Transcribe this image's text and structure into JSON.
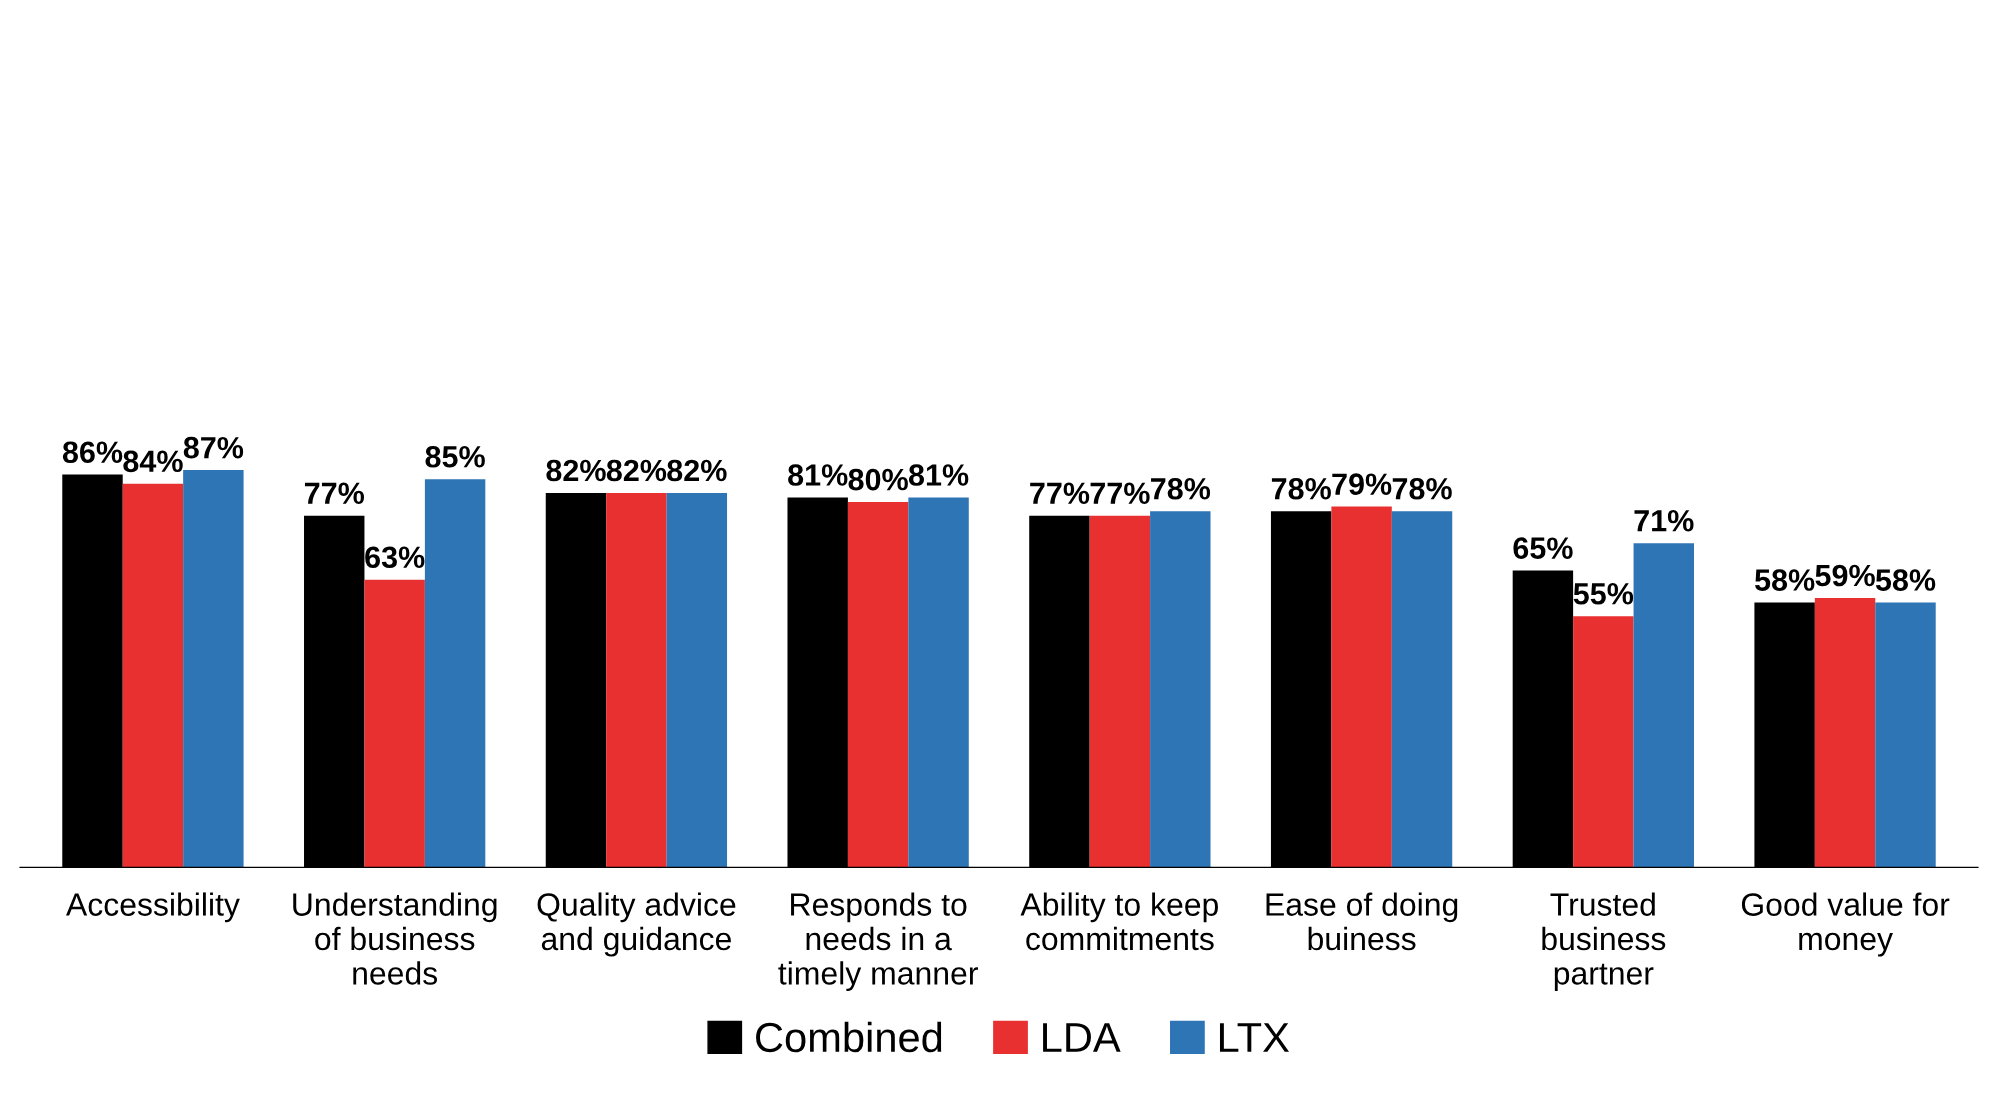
{
  "chart_data": {
    "type": "bar",
    "categories": [
      "Accessibility",
      "Understanding\nof business\nneeds",
      "Quality advice\nand guidance",
      "Responds to\nneeds in a\ntimely manner",
      "Ability to keep\ncommitments",
      "Ease of doing\nbuiness",
      "Trusted\nbusiness\npartner",
      "Good value for\nmoney"
    ],
    "series": [
      {
        "name": "Combined",
        "color": "#000000",
        "values": [
          86,
          77,
          82,
          81,
          77,
          78,
          65,
          58
        ],
        "value_labels": [
          "86%",
          "77%",
          "82%",
          "81%",
          "77%",
          "78%",
          "65%",
          "58%"
        ]
      },
      {
        "name": "LDA",
        "color": "#e83030",
        "values": [
          84,
          63,
          82,
          80,
          77,
          79,
          55,
          59
        ],
        "value_labels": [
          "84%",
          "63%",
          "82%",
          "80%",
          "77%",
          "79%",
          "55%",
          "59%"
        ]
      },
      {
        "name": "LTX",
        "color": "#2e75b6",
        "values": [
          87,
          85,
          82,
          81,
          78,
          78,
          71,
          58
        ],
        "value_labels": [
          "87%",
          "85%",
          "82%",
          "81%",
          "78%",
          "78%",
          "71%",
          "58%"
        ]
      }
    ],
    "legend": "bottom",
    "grid": false
  }
}
